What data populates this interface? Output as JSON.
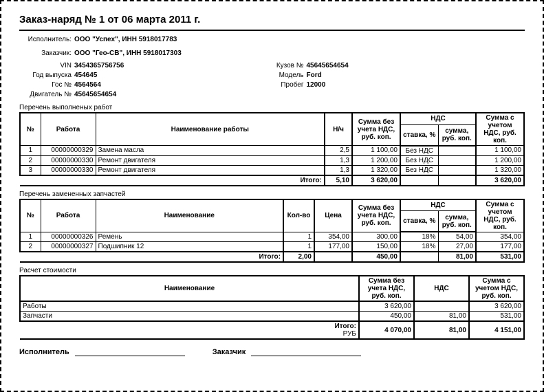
{
  "title": "Заказ-наряд № 1 от 06 марта 2011 г.",
  "header": {
    "executor_label": "Исполнитель:",
    "executor": "ООО \"Успех\", ИНН 5918017783",
    "customer_label": "Заказчик:",
    "customer": "ООО \"Гео-СВ\", ИНН 5918017303",
    "vin_label": "VIN",
    "vin": "3454365756756",
    "year_label": "Год выпуска",
    "year": "454645",
    "gos_label": "Гос №",
    "gos": "4564564",
    "engine_label": "Двигатель №",
    "engine": "45645654654",
    "body_label": "Кузов №",
    "body": "45645654654",
    "model_label": "Модель",
    "model": "Ford",
    "mileage_label": "Пробег",
    "mileage": "12000"
  },
  "works": {
    "section_label": "Перечень выполненых работ",
    "columns": {
      "num": "№",
      "work": "Работа",
      "name": "Наименование работы",
      "hours": "Н/ч",
      "sum_no_vat": "Сумма без учета НДС, руб. коп.",
      "vat": "НДС",
      "rate": "ставка, %",
      "vat_sum": "сумма, руб. коп.",
      "sum_with_vat": "Сумма с учетом НДС, руб. коп."
    },
    "rows": [
      {
        "n": "1",
        "code": "00000000329",
        "name": "Замена масла",
        "h": "2,5",
        "sum": "1 100,00",
        "rate": "Без НДС",
        "vsum": "",
        "total": "1 100,00"
      },
      {
        "n": "2",
        "code": "00000000330",
        "name": "Ремонт двигателя",
        "h": "1,3",
        "sum": "1 200,00",
        "rate": "Без НДС",
        "vsum": "",
        "total": "1 200,00"
      },
      {
        "n": "3",
        "code": "00000000330",
        "name": "Ремонт двигателя",
        "h": "1,3",
        "sum": "1 320,00",
        "rate": "Без НДС",
        "vsum": "",
        "total": "1 320,00"
      }
    ],
    "total": {
      "label": "Итого:",
      "h": "5,10",
      "sum": "3 620,00",
      "vsum": "",
      "total": "3 620,00"
    }
  },
  "parts": {
    "section_label": "Перечень замененных запчастей",
    "columns": {
      "num": "№",
      "work": "Работа",
      "name": "Наименование",
      "qty": "Кол-во",
      "price": "Цена",
      "sum_no_vat": "Сумма без учета НДС, руб. коп.",
      "vat": "НДС",
      "rate": "ставка, %",
      "vat_sum": "сумма, руб. коп.",
      "sum_with_vat": "Сумма с учетом НДС, руб. коп."
    },
    "rows": [
      {
        "n": "1",
        "code": "00000000326",
        "name": "Ремень",
        "qty": "1",
        "price": "354,00",
        "sum": "300,00",
        "rate": "18%",
        "vsum": "54,00",
        "total": "354,00"
      },
      {
        "n": "2",
        "code": "00000000327",
        "name": "Подшипник 12",
        "qty": "1",
        "price": "177,00",
        "sum": "150,00",
        "rate": "18%",
        "vsum": "27,00",
        "total": "177,00"
      }
    ],
    "total": {
      "label": "Итого:",
      "qty": "2,00",
      "price": "",
      "sum": "450,00",
      "vsum": "81,00",
      "total": "531,00"
    }
  },
  "cost": {
    "section_label": "Расчет стоимости",
    "columns": {
      "name": "Наименование",
      "sum_no_vat": "Сумма без учета НДС, руб. коп.",
      "vat": "НДС",
      "sum_with_vat": "Сумма с учетом НДС, руб. коп."
    },
    "rows": [
      {
        "name": "Работы",
        "sum": "3 620,00",
        "vat": "",
        "total": "3 620,00"
      },
      {
        "name": "Запчасти",
        "sum": "450,00",
        "vat": "81,00",
        "total": "531,00"
      }
    ],
    "total": {
      "label": "Итого:",
      "currency": "РУБ",
      "sum": "4 070,00",
      "vat": "81,00",
      "total": "4 151,00"
    }
  },
  "signatures": {
    "executor": "Исполнитель",
    "customer": "Заказчик"
  }
}
